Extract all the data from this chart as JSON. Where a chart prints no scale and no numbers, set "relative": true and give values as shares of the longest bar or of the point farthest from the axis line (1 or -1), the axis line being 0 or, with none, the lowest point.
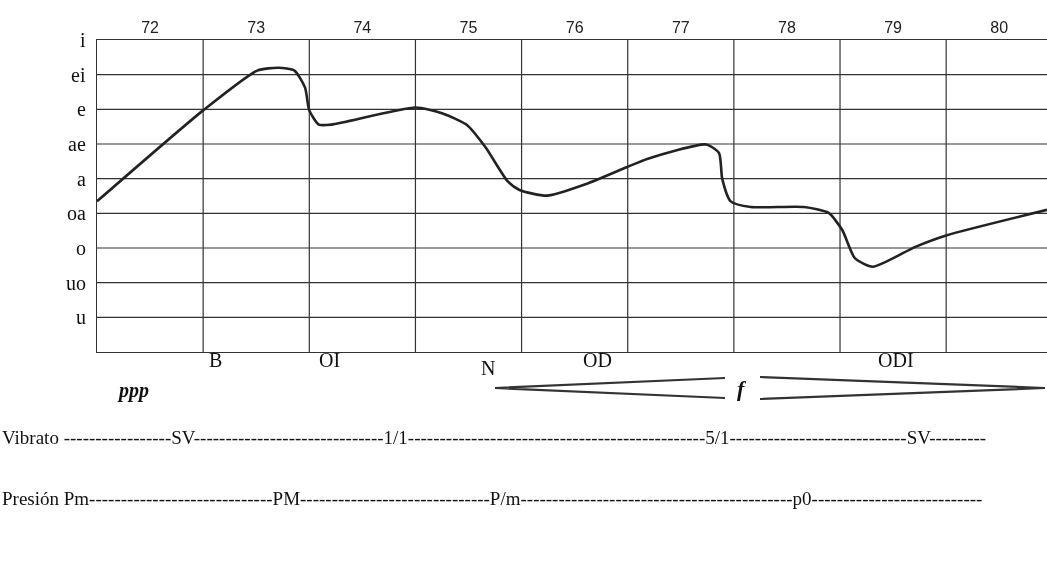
{
  "chart_data": {
    "type": "line",
    "relative": true,
    "x": [
      71.5,
      72.5,
      73.01,
      73.21,
      73.36,
      73.46,
      73.5,
      73.59,
      73.71,
      74.5,
      74.75,
      74.98,
      75.16,
      75.37,
      75.48,
      75.74,
      76.1,
      76.49,
      76.69,
      77.24,
      77.36,
      77.39,
      77.47,
      77.66,
      78.16,
      78.39,
      78.52,
      78.64,
      78.81,
      79.21,
      79.5,
      80.45
    ],
    "series": [
      {
        "color": "#222222",
        "values": [
          0.53,
          0.85,
          0.99,
          1.0,
          0.99,
          0.93,
          0.85,
          0.8,
          0.8,
          0.86,
          0.84,
          0.8,
          0.72,
          0.6,
          0.57,
          0.55,
          0.59,
          0.65,
          0.68,
          0.73,
          0.7,
          0.61,
          0.53,
          0.51,
          0.51,
          0.49,
          0.43,
          0.33,
          0.3,
          0.37,
          0.41,
          0.5
        ]
      }
    ],
    "xlim": [
      71.5,
      80.45
    ],
    "xticks": [
      72,
      73,
      74,
      75,
      76,
      77,
      78,
      79,
      80
    ],
    "grid": "y",
    "ref_lines": [
      {
        "axis": "x",
        "value": 72.5,
        "color": "#333333"
      },
      {
        "axis": "x",
        "value": 73.5,
        "color": "#333333"
      },
      {
        "axis": "x",
        "value": 74.5,
        "color": "#333333"
      },
      {
        "axis": "x",
        "value": 75.5,
        "color": "#333333"
      },
      {
        "axis": "x",
        "value": 76.5,
        "color": "#333333"
      },
      {
        "axis": "x",
        "value": 77.5,
        "color": "#333333"
      },
      {
        "axis": "x",
        "value": 78.5,
        "color": "#333333"
      },
      {
        "axis": "x",
        "value": 79.5,
        "color": "#333333"
      }
    ],
    "marker": "none",
    "line_style": "solid",
    "annotations": [
      "i",
      "ei",
      "e",
      "ae",
      "a",
      "oa",
      "o",
      "uo",
      "u",
      "B",
      "OI",
      "N",
      "OD",
      "ODI",
      "ppp",
      "f",
      "Vibrato -----------------SV------------------------------1/1-----------------------------------------------5/1----------------------------SV---------",
      "Presión Pm-----------------------------PM------------------------------P/m-------------------------------------------p0---------------------------"
    ]
  }
}
